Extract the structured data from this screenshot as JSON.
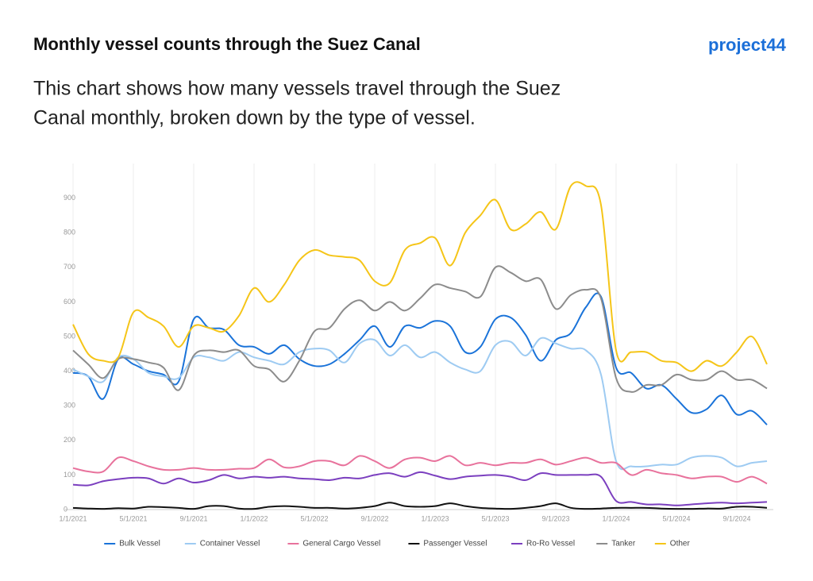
{
  "header": {
    "title": "Monthly vessel counts through the Suez Canal",
    "logo": "project44",
    "subtitle": [
      "This chart shows how many vessels travel through the Suez",
      "Canal monthly, broken down by the type of vessel."
    ]
  },
  "chart_data": {
    "type": "line",
    "grid": "x",
    "ylim": [
      0,
      1000
    ],
    "yticks": [
      0,
      100,
      200,
      300,
      400,
      500,
      600,
      700,
      800,
      900
    ],
    "legend": "bottom",
    "categories": [
      "1/1/2021",
      null,
      null,
      null,
      "5/1/2021",
      null,
      null,
      null,
      "9/1/2021",
      null,
      null,
      null,
      "1/1/2022",
      null,
      null,
      null,
      "5/1/2022",
      null,
      null,
      null,
      "9/1/2022",
      null,
      null,
      null,
      "1/1/2023",
      null,
      null,
      null,
      "5/1/2023",
      null,
      null,
      null,
      "9/1/2023",
      null,
      null,
      null,
      "1/1/2024",
      null,
      null,
      null,
      "5/1/2024",
      null,
      null,
      null,
      "9/1/2024",
      null,
      null
    ],
    "series": [
      {
        "name": "Bulk Vessel",
        "color": "#1a73d9",
        "values": [
          395,
          385,
          320,
          435,
          420,
          400,
          390,
          370,
          550,
          525,
          520,
          475,
          470,
          450,
          475,
          435,
          415,
          420,
          450,
          490,
          530,
          470,
          530,
          525,
          545,
          530,
          455,
          470,
          550,
          555,
          505,
          430,
          490,
          510,
          585,
          615,
          410,
          395,
          350,
          360,
          320,
          280,
          290,
          330,
          275,
          285,
          245
        ]
      },
      {
        "name": "Container Vessel",
        "color": "#9ecbf2",
        "values": [
          405,
          385,
          370,
          440,
          435,
          395,
          385,
          380,
          440,
          440,
          430,
          455,
          440,
          430,
          420,
          455,
          465,
          460,
          425,
          480,
          490,
          445,
          475,
          440,
          455,
          425,
          405,
          400,
          475,
          485,
          445,
          495,
          480,
          465,
          460,
          390,
          140,
          125,
          125,
          130,
          130,
          150,
          155,
          150,
          125,
          135,
          140
        ]
      },
      {
        "name": "General Cargo Vessel",
        "color": "#e8729c",
        "values": [
          120,
          110,
          110,
          150,
          140,
          125,
          115,
          115,
          120,
          115,
          115,
          118,
          120,
          145,
          122,
          125,
          140,
          140,
          128,
          155,
          140,
          120,
          145,
          150,
          140,
          155,
          128,
          135,
          128,
          135,
          135,
          145,
          130,
          140,
          150,
          135,
          135,
          100,
          115,
          105,
          100,
          90,
          95,
          95,
          80,
          95,
          75
        ]
      },
      {
        "name": "Passenger Vessel",
        "color": "#111111",
        "values": [
          5,
          3,
          2,
          4,
          3,
          8,
          7,
          5,
          2,
          10,
          10,
          3,
          2,
          8,
          10,
          8,
          5,
          5,
          3,
          5,
          10,
          20,
          10,
          8,
          10,
          18,
          10,
          5,
          3,
          2,
          5,
          10,
          18,
          5,
          2,
          3,
          5,
          5,
          5,
          3,
          2,
          2,
          3,
          3,
          8,
          8,
          5
        ]
      },
      {
        "name": "Ro-Ro Vessel",
        "color": "#7b3fbf",
        "values": [
          72,
          70,
          82,
          88,
          92,
          90,
          75,
          90,
          78,
          85,
          100,
          90,
          95,
          92,
          95,
          90,
          88,
          85,
          92,
          90,
          100,
          105,
          95,
          108,
          98,
          88,
          95,
          98,
          100,
          95,
          85,
          105,
          100,
          100,
          100,
          95,
          25,
          22,
          15,
          15,
          12,
          15,
          18,
          20,
          18,
          20,
          22
        ]
      },
      {
        "name": "Tanker",
        "color": "#8c8c8c",
        "values": [
          460,
          420,
          380,
          435,
          435,
          425,
          410,
          345,
          445,
          460,
          455,
          460,
          415,
          405,
          370,
          430,
          515,
          525,
          580,
          605,
          575,
          600,
          575,
          610,
          650,
          640,
          630,
          615,
          700,
          685,
          660,
          665,
          580,
          620,
          635,
          610,
          380,
          340,
          360,
          360,
          390,
          375,
          375,
          400,
          375,
          375,
          350
        ]
      },
      {
        "name": "Other",
        "color": "#f5c518",
        "values": [
          535,
          450,
          430,
          440,
          570,
          555,
          530,
          470,
          530,
          525,
          515,
          560,
          640,
          600,
          650,
          720,
          750,
          735,
          730,
          720,
          660,
          655,
          750,
          770,
          785,
          705,
          800,
          850,
          895,
          810,
          825,
          860,
          810,
          935,
          935,
          880,
          460,
          455,
          455,
          430,
          425,
          400,
          430,
          415,
          455,
          500,
          420
        ]
      }
    ]
  }
}
